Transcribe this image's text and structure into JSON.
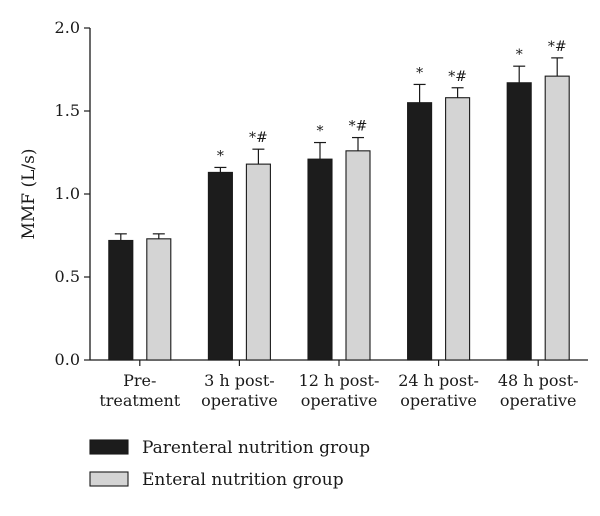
{
  "chart_data": {
    "type": "bar",
    "ylabel": "MMF (L/s)",
    "ylim": [
      0,
      2.0
    ],
    "yticks": [
      "0.0",
      "0.5",
      "1.0",
      "1.5",
      "2.0"
    ],
    "categories": [
      [
        "Pre-",
        "treatment"
      ],
      [
        "3 h post-",
        "operative"
      ],
      [
        "12 h post-",
        "operative"
      ],
      [
        "24 h post-",
        "operative"
      ],
      [
        "48 h post-",
        "operative"
      ]
    ],
    "series": [
      {
        "name": "Parenteral nutrition group",
        "color": "#1c1c1c",
        "values": [
          0.72,
          1.13,
          1.21,
          1.55,
          1.67
        ],
        "errors": [
          0.04,
          0.03,
          0.1,
          0.11,
          0.1
        ],
        "marks": [
          "",
          "*",
          "*",
          "*",
          "*"
        ]
      },
      {
        "name": "Enteral nutrition group",
        "color": "#d4d4d4",
        "values": [
          0.73,
          1.18,
          1.26,
          1.58,
          1.71
        ],
        "errors": [
          0.03,
          0.09,
          0.08,
          0.06,
          0.11
        ],
        "marks": [
          "",
          "*#",
          "*#",
          "*#",
          "*#"
        ]
      }
    ],
    "legend_position": "bottom-left",
    "grid": false
  }
}
